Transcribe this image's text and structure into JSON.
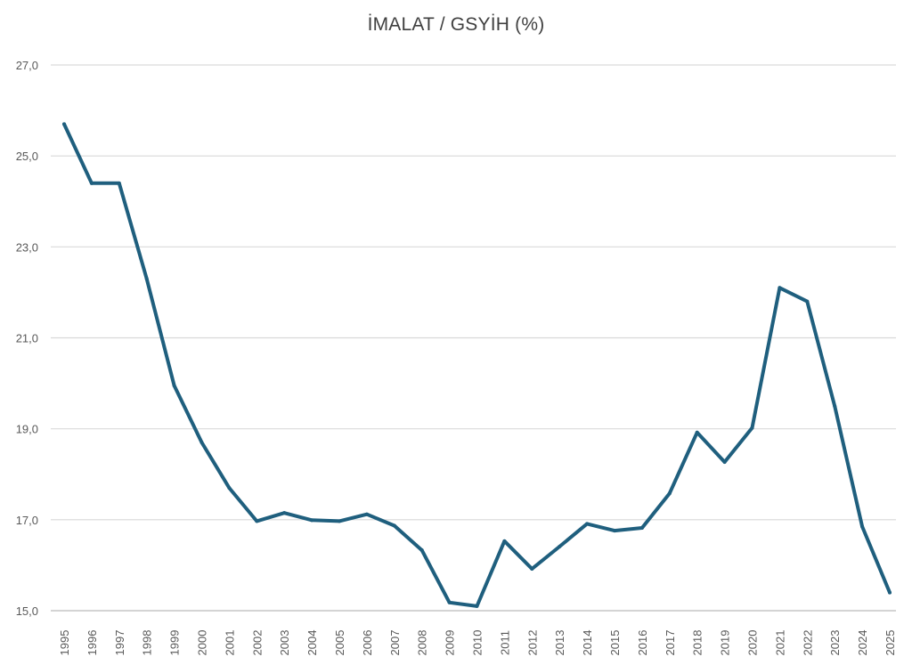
{
  "chart_data": {
    "type": "line",
    "title": "İMALAT / GSYİH (%)",
    "xlabel": "",
    "ylabel": "",
    "ylim": [
      15.0,
      27.0
    ],
    "y_ticks": [
      "15,0",
      "17,0",
      "19,0",
      "21,0",
      "23,0",
      "25,0",
      "27,0"
    ],
    "y_tick_values": [
      15,
      17,
      19,
      21,
      23,
      25,
      27
    ],
    "grid": true,
    "legend": "none",
    "line_color": "#1f5f7e",
    "grid_color": "#d9d9d9",
    "categories": [
      "1995",
      "1996",
      "1997",
      "1998",
      "1999",
      "2000",
      "2001",
      "2002",
      "2003",
      "2004",
      "2005",
      "2006",
      "2007",
      "2008",
      "2009",
      "2010",
      "2011",
      "2012",
      "2013",
      "2014",
      "2015",
      "2016",
      "2017",
      "2018",
      "2019",
      "2020",
      "2021",
      "2022",
      "2023",
      "2024",
      "2025"
    ],
    "series": [
      {
        "name": "İmalat / GSYİH (%)",
        "values": [
          25.7,
          24.4,
          24.4,
          22.3,
          19.95,
          18.7,
          17.7,
          16.97,
          17.15,
          16.99,
          16.97,
          17.12,
          16.87,
          16.33,
          15.18,
          15.1,
          16.53,
          15.92,
          16.41,
          16.91,
          16.76,
          16.82,
          17.58,
          18.92,
          18.27,
          19.02,
          22.1,
          21.8,
          19.5,
          16.85,
          15.4
        ]
      }
    ]
  }
}
